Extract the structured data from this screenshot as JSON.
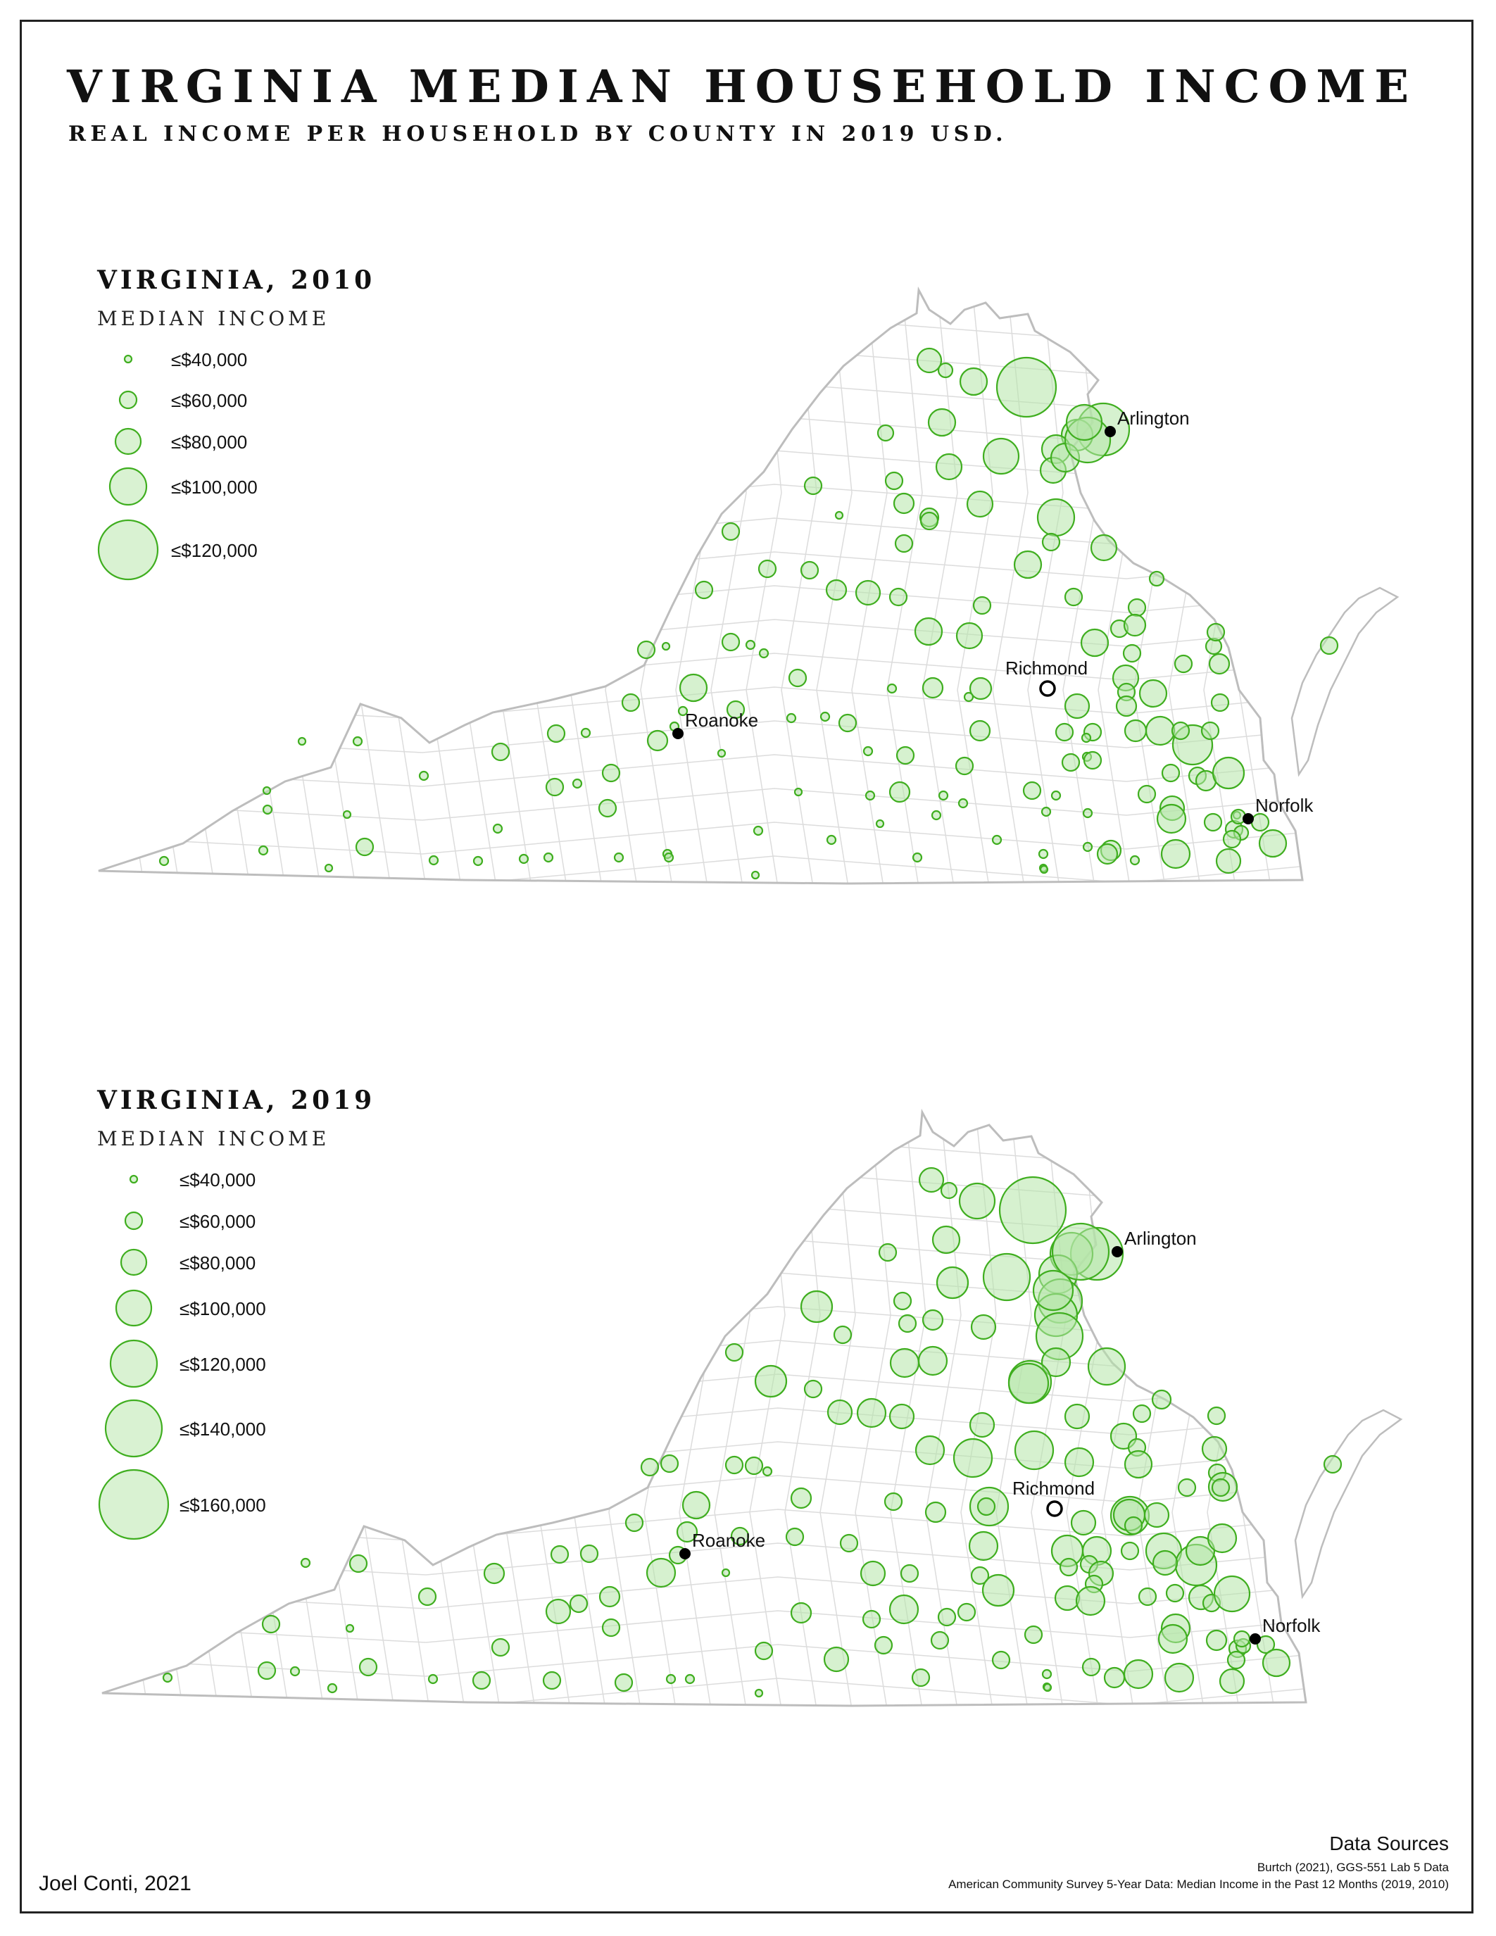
{
  "title": "VIRGINIA MEDIAN HOUSEHOLD INCOME",
  "subtitle": "REAL INCOME PER HOUSEHOLD BY COUNTY IN 2019 USD.",
  "author": "Joel Conti, 2021",
  "sources": {
    "heading": "Data Sources",
    "lines": [
      "Burtch (2021), GGS-551 Lab 5 Data",
      "American Community Survey 5-Year Data: Median Income in the Past 12 Months (2019, 2010)"
    ]
  },
  "maps": [
    {
      "title": "VIRGINIA, 2010",
      "legend_title": "MEDIAN INCOME",
      "legend": [
        {
          "label": "≤$40,000",
          "value": 40000
        },
        {
          "label": "≤$60,000",
          "value": 60000
        },
        {
          "label": "≤$80,000",
          "value": 80000
        },
        {
          "label": "≤$100,000",
          "value": 100000
        },
        {
          "label": "≤$120,000",
          "value": 120000
        }
      ]
    },
    {
      "title": "VIRGINIA, 2019",
      "legend_title": "MEDIAN INCOME",
      "legend": [
        {
          "label": "≤$40,000",
          "value": 40000
        },
        {
          "label": "≤$60,000",
          "value": 60000
        },
        {
          "label": "≤$80,000",
          "value": 80000
        },
        {
          "label": "≤$100,000",
          "value": 100000
        },
        {
          "label": "≤$120,000",
          "value": 120000
        },
        {
          "label": "≤$140,000",
          "value": 140000
        },
        {
          "label": "≤$160,000",
          "value": 160000
        }
      ]
    }
  ],
  "cities": [
    {
      "name": "Arlington",
      "symbol": "filled"
    },
    {
      "name": "Richmond",
      "symbol": "hollow"
    },
    {
      "name": "Roanoke",
      "symbol": "filled"
    },
    {
      "name": "Norfolk",
      "symbol": "filled"
    }
  ],
  "colors": {
    "symbol_fill": "#b5e6a8",
    "symbol_stroke": "#3fae1f",
    "county_stroke": "#d8d8d8",
    "state_outline": "#bdbdbd",
    "frame": "#222222"
  }
}
